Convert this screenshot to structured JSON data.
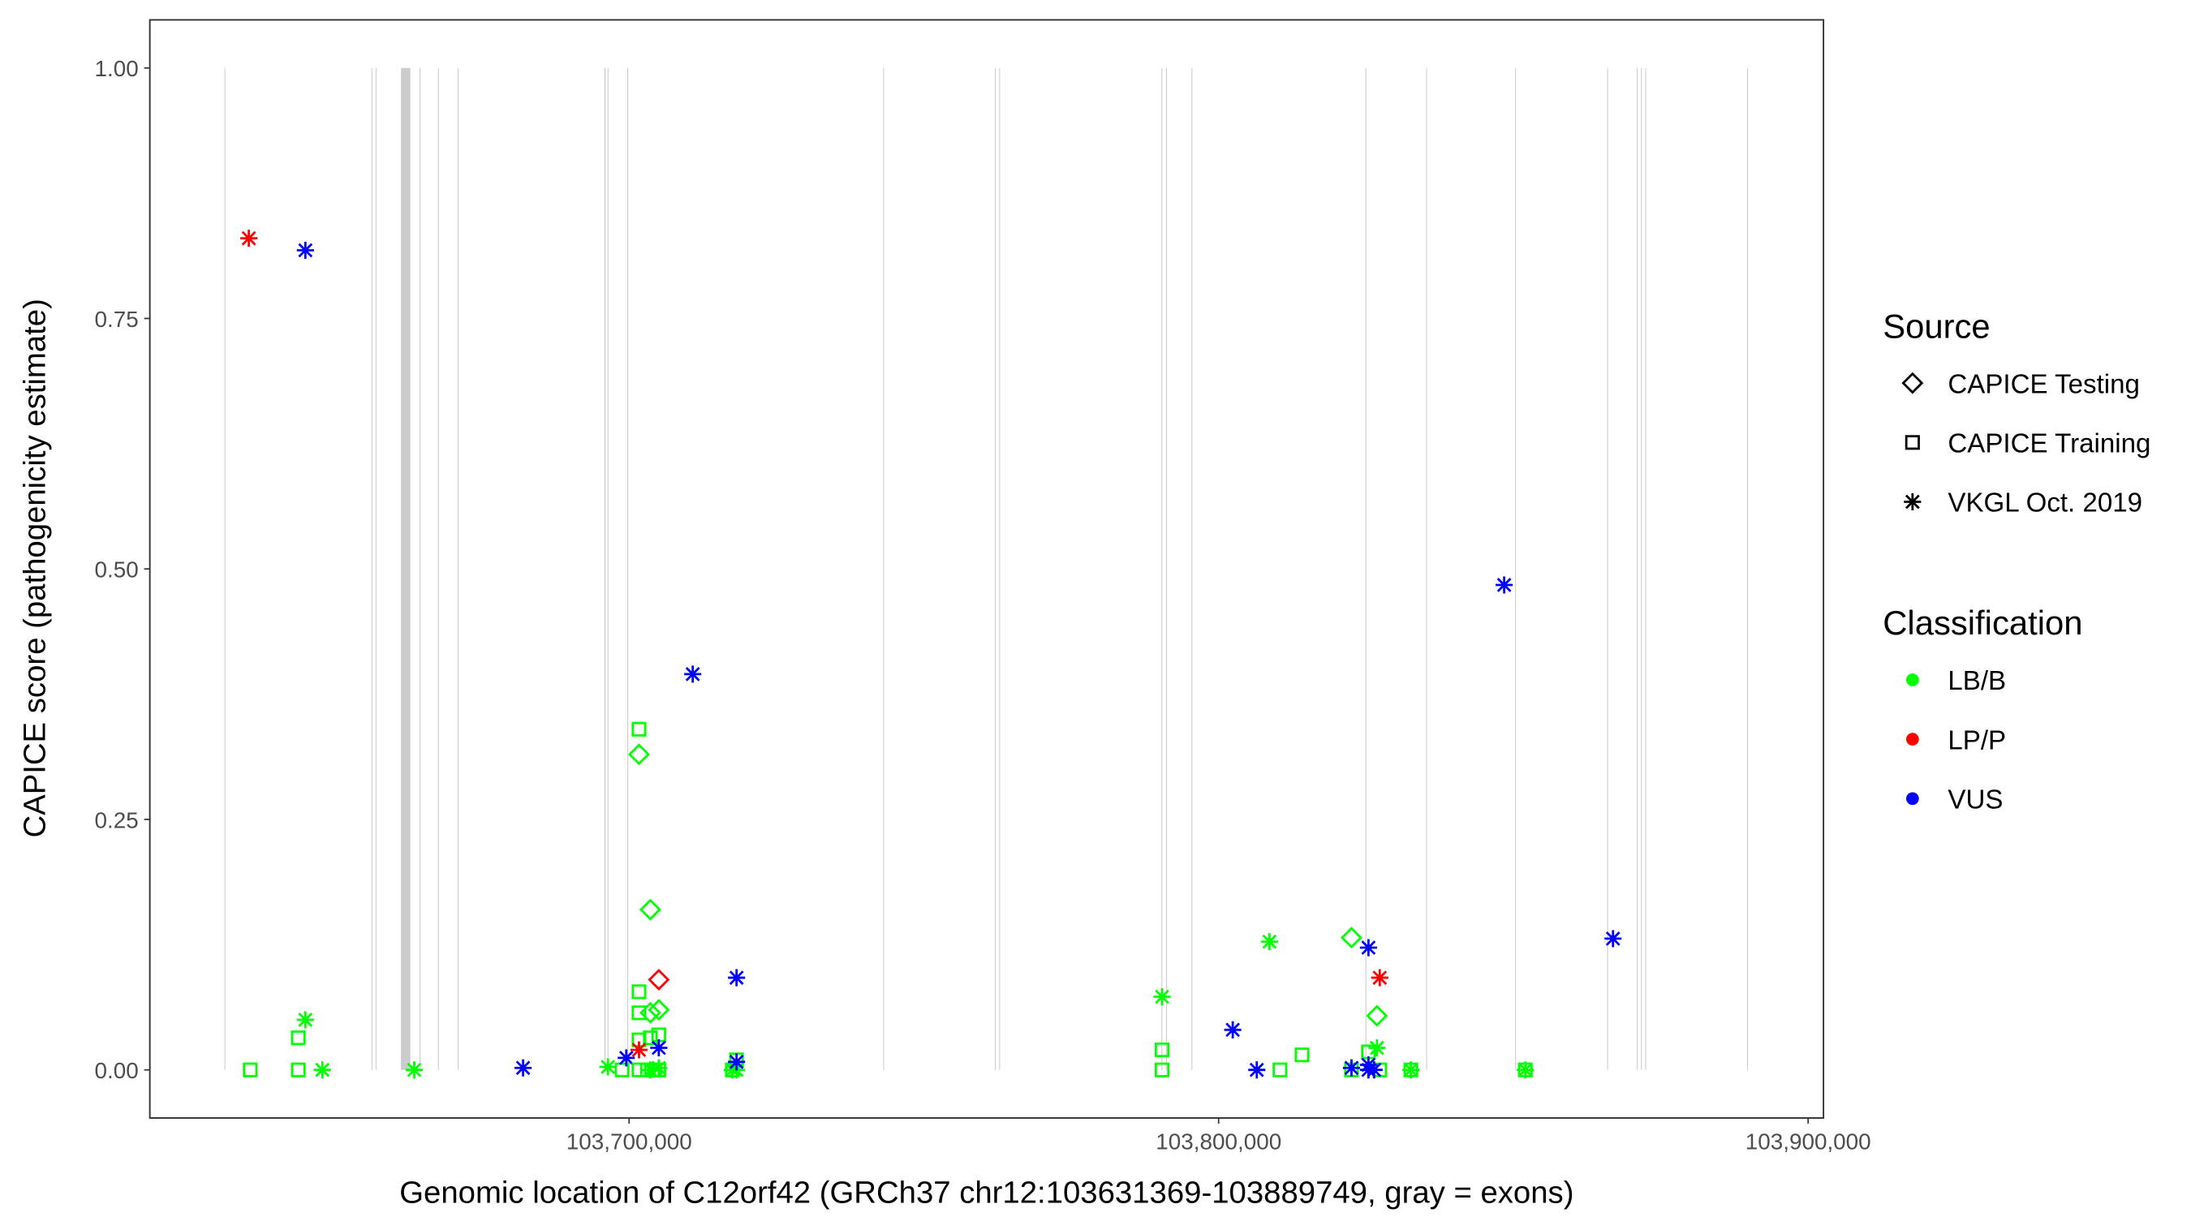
{
  "chart_data": {
    "type": "scatter",
    "xlabel": "Genomic location of C12orf42 (GRCh37 chr12:103631369-103889749, gray = exons)",
    "ylabel": "CAPICE score (pathogenicity estimate)",
    "xlim": [
      103618700,
      103902600
    ],
    "ylim": [
      -0.048,
      1.048
    ],
    "grid": false,
    "x_ticks": [
      {
        "value": 103700000,
        "label": "103,700,000"
      },
      {
        "value": 103800000,
        "label": "103,800,000"
      },
      {
        "value": 103900000,
        "label": "103,900,000"
      }
    ],
    "y_ticks": [
      {
        "value": 0,
        "label": "0.00"
      },
      {
        "value": 0.25,
        "label": "0.25"
      },
      {
        "value": 0.5,
        "label": "0.50"
      },
      {
        "value": 0.75,
        "label": "0.75"
      },
      {
        "value": 1,
        "label": "1.00"
      }
    ],
    "exons": [
      [
        103631369,
        103631500
      ],
      [
        103656300,
        103656400
      ],
      [
        103657000,
        103657100
      ],
      [
        103661300,
        103662900
      ],
      [
        103664450,
        103664550
      ],
      [
        103667580,
        103667680
      ],
      [
        103670930,
        103671030
      ],
      [
        103695800,
        103696000
      ],
      [
        103696350,
        103696450
      ],
      [
        103699700,
        103699800
      ],
      [
        103743100,
        103743200
      ],
      [
        103762050,
        103762150
      ],
      [
        103762780,
        103762880
      ],
      [
        103790300,
        103790450
      ],
      [
        103791080,
        103791180
      ],
      [
        103795400,
        103795500
      ],
      [
        103824900,
        103825000
      ],
      [
        103835200,
        103835300
      ],
      [
        103850300,
        103850400
      ],
      [
        103865900,
        103866000
      ],
      [
        103870930,
        103871030
      ],
      [
        103871650,
        103871750
      ],
      [
        103872370,
        103872470
      ],
      [
        103889650,
        103889749
      ]
    ],
    "legend": {
      "placement": "right",
      "source_title": "Source",
      "source": [
        {
          "name": "CAPICE Testing",
          "shape": "diamond"
        },
        {
          "name": "CAPICE Training",
          "shape": "square"
        },
        {
          "name": "VKGL Oct. 2019",
          "shape": "asterisk"
        }
      ],
      "class_title": "Classification",
      "classes": [
        {
          "name": "LB/B",
          "color": "#00ff00"
        },
        {
          "name": "LP/P",
          "color": "#ff0000"
        },
        {
          "name": "VUS",
          "color": "#0000ff"
        }
      ]
    },
    "points": [
      {
        "x": 103635494,
        "y": 0.83,
        "source": "VKGL Oct. 2019",
        "class": "LP/P"
      },
      {
        "x": 103645086,
        "y": 0.818,
        "source": "VKGL Oct. 2019",
        "class": "VUS"
      },
      {
        "x": 103635734,
        "y": 0,
        "source": "CAPICE Training",
        "class": "LB/B"
      },
      {
        "x": 103643887,
        "y": 0,
        "source": "CAPICE Training",
        "class": "LB/B"
      },
      {
        "x": 103643887,
        "y": 0.032,
        "source": "CAPICE Training",
        "class": "LB/B"
      },
      {
        "x": 103645086,
        "y": 0.05,
        "source": "VKGL Oct. 2019",
        "class": "LB/B"
      },
      {
        "x": 103647963,
        "y": 0,
        "source": "VKGL Oct. 2019",
        "class": "LB/B"
      },
      {
        "x": 103663550,
        "y": 0,
        "source": "VKGL Oct. 2019",
        "class": "LB/B"
      },
      {
        "x": 103682015,
        "y": 0.002,
        "source": "VKGL Oct. 2019",
        "class": "VUS"
      },
      {
        "x": 103696403,
        "y": 0.003,
        "source": "VKGL Oct. 2019",
        "class": "LB/B"
      },
      {
        "x": 103698801,
        "y": 0,
        "source": "CAPICE Training",
        "class": "LB/B"
      },
      {
        "x": 103699520,
        "y": 0.012,
        "source": "VKGL Oct. 2019",
        "class": "VUS"
      },
      {
        "x": 103701679,
        "y": 0.34,
        "source": "CAPICE Training",
        "class": "LB/B"
      },
      {
        "x": 103701679,
        "y": 0.315,
        "source": "CAPICE Testing",
        "class": "LB/B"
      },
      {
        "x": 103703597,
        "y": 0.16,
        "source": "CAPICE Testing",
        "class": "LB/B"
      },
      {
        "x": 103701679,
        "y": 0.078,
        "source": "CAPICE Training",
        "class": "LB/B"
      },
      {
        "x": 103701679,
        "y": 0.057,
        "source": "CAPICE Training",
        "class": "LB/B"
      },
      {
        "x": 103703597,
        "y": 0.057,
        "source": "CAPICE Testing",
        "class": "LB/B"
      },
      {
        "x": 103705036,
        "y": 0.06,
        "source": "CAPICE Testing",
        "class": "LB/B"
      },
      {
        "x": 103701679,
        "y": 0.03,
        "source": "CAPICE Training",
        "class": "LB/B"
      },
      {
        "x": 103703597,
        "y": 0.032,
        "source": "CAPICE Training",
        "class": "LB/B"
      },
      {
        "x": 103705036,
        "y": 0.035,
        "source": "CAPICE Training",
        "class": "LB/B"
      },
      {
        "x": 103701679,
        "y": 0,
        "source": "CAPICE Training",
        "class": "LB/B"
      },
      {
        "x": 103703118,
        "y": 0,
        "source": "CAPICE Training",
        "class": "LB/B"
      },
      {
        "x": 103704317,
        "y": 0,
        "source": "CAPICE Training",
        "class": "LB/B"
      },
      {
        "x": 103705036,
        "y": 0,
        "source": "CAPICE Training",
        "class": "LB/B"
      },
      {
        "x": 103703597,
        "y": 0,
        "source": "VKGL Oct. 2019",
        "class": "LB/B"
      },
      {
        "x": 103705036,
        "y": 0.002,
        "source": "VKGL Oct. 2019",
        "class": "LB/B"
      },
      {
        "x": 103705036,
        "y": 0.09,
        "source": "CAPICE Testing",
        "class": "LP/P"
      },
      {
        "x": 103701679,
        "y": 0.02,
        "source": "VKGL Oct. 2019",
        "class": "LP/P"
      },
      {
        "x": 103705036,
        "y": 0.022,
        "source": "VKGL Oct. 2019",
        "class": "VUS"
      },
      {
        "x": 103710791,
        "y": 0.395,
        "source": "VKGL Oct. 2019",
        "class": "VUS"
      },
      {
        "x": 103718225,
        "y": 0.092,
        "source": "VKGL Oct. 2019",
        "class": "VUS"
      },
      {
        "x": 103718225,
        "y": 0.01,
        "source": "CAPICE Training",
        "class": "LB/B"
      },
      {
        "x": 103717506,
        "y": 0,
        "source": "CAPICE Training",
        "class": "LB/B"
      },
      {
        "x": 103717506,
        "y": 0,
        "source": "VKGL Oct. 2019",
        "class": "LB/B"
      },
      {
        "x": 103718225,
        "y": 0,
        "source": "VKGL Oct. 2019",
        "class": "LB/B"
      },
      {
        "x": 103718225,
        "y": 0.008,
        "source": "VKGL Oct. 2019",
        "class": "VUS"
      },
      {
        "x": 103790405,
        "y": 0.073,
        "source": "VKGL Oct. 2019",
        "class": "LB/B"
      },
      {
        "x": 103790405,
        "y": 0.02,
        "source": "CAPICE Training",
        "class": "LB/B"
      },
      {
        "x": 103790405,
        "y": 0,
        "source": "CAPICE Training",
        "class": "LB/B"
      },
      {
        "x": 103802395,
        "y": 0.04,
        "source": "VKGL Oct. 2019",
        "class": "VUS"
      },
      {
        "x": 103808630,
        "y": 0.128,
        "source": "VKGL Oct. 2019",
        "class": "LB/B"
      },
      {
        "x": 103810400,
        "y": 0,
        "source": "CAPICE Training",
        "class": "LB/B"
      },
      {
        "x": 103806472,
        "y": 0,
        "source": "VKGL Oct. 2019",
        "class": "VUS"
      },
      {
        "x": 103814145,
        "y": 0.015,
        "source": "CAPICE Training",
        "class": "LB/B"
      },
      {
        "x": 103822538,
        "y": 0.132,
        "source": "CAPICE Testing",
        "class": "LB/B"
      },
      {
        "x": 103825416,
        "y": 0.122,
        "source": "VKGL Oct. 2019",
        "class": "VUS"
      },
      {
        "x": 103827334,
        "y": 0.092,
        "source": "VKGL Oct. 2019",
        "class": "LP/P"
      },
      {
        "x": 103826855,
        "y": 0.054,
        "source": "CAPICE Testing",
        "class": "LB/B"
      },
      {
        "x": 103826855,
        "y": 0.022,
        "source": "VKGL Oct. 2019",
        "class": "LB/B"
      },
      {
        "x": 103825416,
        "y": 0.018,
        "source": "CAPICE Training",
        "class": "LB/B"
      },
      {
        "x": 103822538,
        "y": 0,
        "source": "CAPICE Training",
        "class": "LB/B"
      },
      {
        "x": 103827334,
        "y": 0,
        "source": "CAPICE Training",
        "class": "LB/B"
      },
      {
        "x": 103822538,
        "y": 0.002,
        "source": "VKGL Oct. 2019",
        "class": "VUS"
      },
      {
        "x": 103825416,
        "y": 0.005,
        "source": "VKGL Oct. 2019",
        "class": "VUS"
      },
      {
        "x": 103826375,
        "y": 0,
        "source": "VKGL Oct. 2019",
        "class": "VUS"
      },
      {
        "x": 103825416,
        "y": 0,
        "source": "VKGL Oct. 2019",
        "class": "VUS"
      },
      {
        "x": 103832609,
        "y": 0,
        "source": "CAPICE Training",
        "class": "LB/B"
      },
      {
        "x": 103832609,
        "y": 0,
        "source": "VKGL Oct. 2019",
        "class": "LB/B"
      },
      {
        "x": 103852033,
        "y": 0,
        "source": "CAPICE Training",
        "class": "LB/B"
      },
      {
        "x": 103852033,
        "y": 0,
        "source": "VKGL Oct. 2019",
        "class": "LB/B"
      },
      {
        "x": 103848436,
        "y": 0.484,
        "source": "VKGL Oct. 2019",
        "class": "VUS"
      },
      {
        "x": 103866900,
        "y": 0.131,
        "source": "VKGL Oct. 2019",
        "class": "VUS"
      }
    ]
  }
}
